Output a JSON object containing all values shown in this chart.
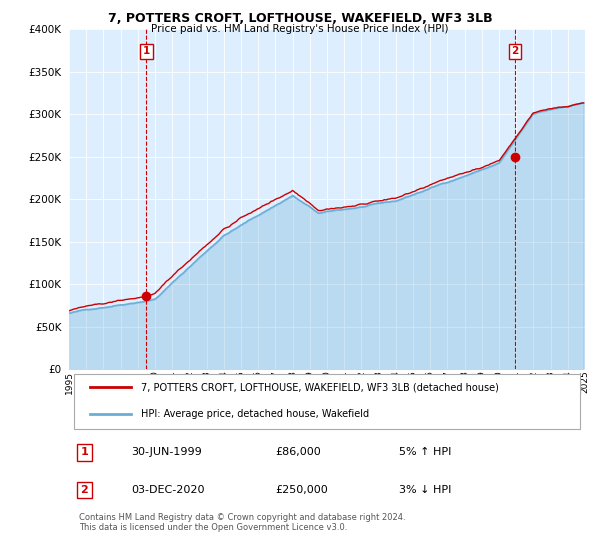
{
  "title": "7, POTTERS CROFT, LOFTHOUSE, WAKEFIELD, WF3 3LB",
  "subtitle": "Price paid vs. HM Land Registry's House Price Index (HPI)",
  "legend_line1": "7, POTTERS CROFT, LOFTHOUSE, WAKEFIELD, WF3 3LB (detached house)",
  "legend_line2": "HPI: Average price, detached house, Wakefield",
  "annotation1_date": "30-JUN-1999",
  "annotation1_price": "£86,000",
  "annotation1_hpi": "5% ↑ HPI",
  "annotation1_year": 1999.5,
  "annotation1_value": 86000,
  "annotation2_date": "03-DEC-2020",
  "annotation2_price": "£250,000",
  "annotation2_hpi": "3% ↓ HPI",
  "annotation2_year": 2020.917,
  "annotation2_value": 250000,
  "footer": "Contains HM Land Registry data © Crown copyright and database right 2024.\nThis data is licensed under the Open Government Licence v3.0.",
  "ylim": [
    0,
    400000
  ],
  "yticks": [
    0,
    50000,
    100000,
    150000,
    200000,
    250000,
    300000,
    350000,
    400000
  ],
  "hpi_color": "#6baed6",
  "price_color": "#cc0000",
  "dot_color": "#cc0000",
  "vline_color": "#cc0000",
  "chart_bg_color": "#ddeeff",
  "background_color": "#ffffff",
  "grid_color": "#ffffff",
  "xtick_years": [
    1995,
    1996,
    1997,
    1998,
    1999,
    2000,
    2001,
    2002,
    2003,
    2004,
    2005,
    2006,
    2007,
    2008,
    2009,
    2010,
    2011,
    2012,
    2013,
    2014,
    2015,
    2016,
    2017,
    2018,
    2019,
    2020,
    2021,
    2022,
    2023,
    2024,
    2025
  ]
}
